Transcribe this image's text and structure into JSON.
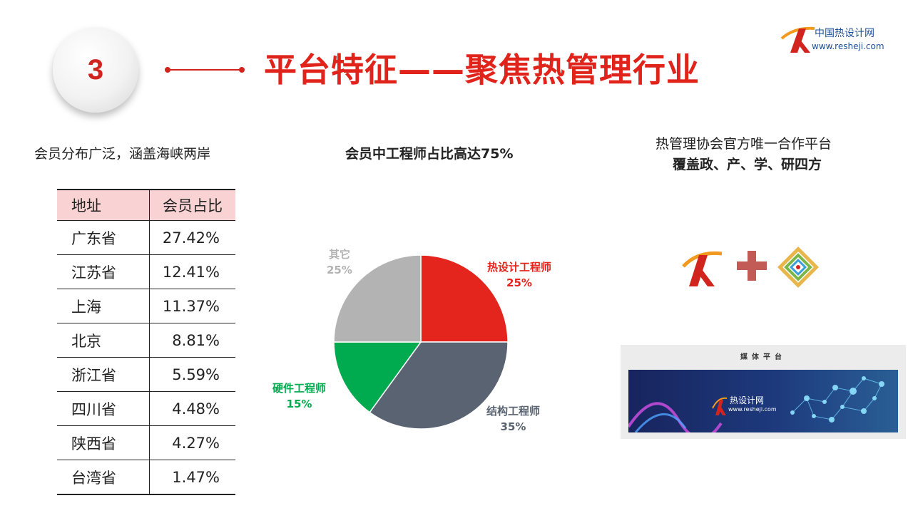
{
  "header": {
    "section_number": "3",
    "title": "平台特征——聚焦热管理行业"
  },
  "logo": {
    "name": "中国热设计网",
    "url": "www.resheji.com"
  },
  "left": {
    "caption": "会员分布广泛，涵盖海峡两岸",
    "table": {
      "headers": [
        "地址",
        "会员占比"
      ],
      "rows": [
        [
          "广东省",
          "27.42%"
        ],
        [
          "江苏省",
          "12.41%"
        ],
        [
          "上海",
          "11.37%"
        ],
        [
          "北京",
          "8.81%"
        ],
        [
          "浙江省",
          "5.59%"
        ],
        [
          "四川省",
          "4.48%"
        ],
        [
          "陕西省",
          "4.27%"
        ],
        [
          "台湾省",
          "1.47%"
        ]
      ]
    }
  },
  "middle": {
    "caption": "会员中工程师占比高达75%"
  },
  "chart_data": {
    "type": "pie",
    "title": "会员中工程师占比高达75%",
    "slices": [
      {
        "label": "热设计工程师",
        "value": 25,
        "value_label": "25%",
        "color": "#e3251d"
      },
      {
        "label": "结构工程师",
        "value": 35,
        "value_label": "35%",
        "color": "#5a6371"
      },
      {
        "label": "硬件工程师",
        "value": 15,
        "value_label": "15%",
        "color": "#00aa4f"
      },
      {
        "label": "其它",
        "value": 25,
        "value_label": "25%",
        "color": "#b3b3b3"
      }
    ],
    "start_angle": "12 o'clock",
    "direction": "clockwise",
    "legend": "none (labels next to slices)"
  },
  "right": {
    "caption_line1": "热管理协会官方唯一合作平台",
    "caption_line2": "覆盖政、产、学、研四方",
    "media": {
      "title": "媒体平台",
      "banner_name": "热设计网",
      "banner_url": "www.resheji.com"
    }
  },
  "colors": {
    "accent": "#e0241c",
    "table_header": "#f9d3d3",
    "logo_blue": "#1c4f9a"
  }
}
